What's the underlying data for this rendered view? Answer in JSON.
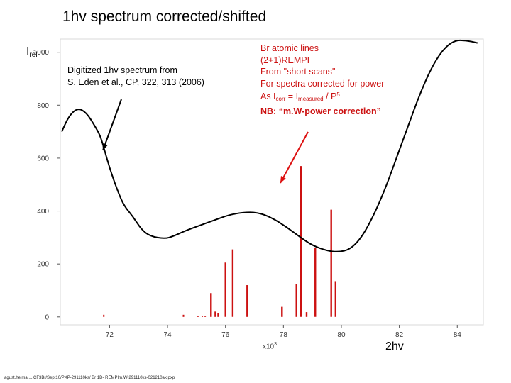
{
  "slide": {
    "title": "1hv spectrum  corrected/shifted",
    "footer": "agust,heima,....CF3Br/Sept10/PXP-291110ks/ Br 1D- REMPIm.W-291110ks-021210ak.pxp"
  },
  "annotations": {
    "y_label_main": "I",
    "y_label_sub": "rel",
    "digitized_line1": "Digitized 1hv spectrum from",
    "digitized_line2": "S. Eden et al., CP, 322, 313 (2006)",
    "br_line1": "Br atomic lines",
    "br_line2": "(2+1)REMPI",
    "br_line3": "From \"short scans\"",
    "br_line4": "For spectra corrected for power",
    "br_line5_as": "As I",
    "br_line5_corr": "corr",
    "br_line5_eq": " = I",
    "br_line5_meas": "measured",
    "br_line5_div": " / P",
    "br_line5_pow": "5",
    "br_line6": "NB: “m.W-power correction”",
    "x_label": "2hv",
    "x_exp_base": "x10",
    "x_exp_pow": "3"
  },
  "colors": {
    "spectrum_line": "#000000",
    "br_lines": "#cc1111",
    "arrow_black": "#000000",
    "arrow_red": "#dd1111"
  },
  "chart_data": {
    "type": "line",
    "xlim": [
      70.3,
      84.9
    ],
    "ylim": [
      -30,
      1050
    ],
    "x_scale_note": "x10^3",
    "xlabel": "2hv",
    "ylabel": "Irel",
    "xticks": [
      72,
      74,
      76,
      78,
      80,
      82,
      84
    ],
    "yticks": [
      0,
      200,
      400,
      600,
      800,
      1000
    ],
    "grid": false,
    "series": [
      {
        "kind": "line",
        "points": [
          [
            70.35,
            700
          ],
          [
            70.6,
            760
          ],
          [
            70.9,
            790
          ],
          [
            71.2,
            772
          ],
          [
            71.5,
            720
          ],
          [
            71.7,
            680
          ],
          [
            71.9,
            600
          ],
          [
            72.1,
            530
          ],
          [
            72.3,
            470
          ],
          [
            72.5,
            420
          ],
          [
            72.8,
            380
          ],
          [
            73.1,
            330
          ],
          [
            73.4,
            305
          ],
          [
            73.9,
            295
          ],
          [
            74.2,
            305
          ],
          [
            74.6,
            325
          ],
          [
            75.1,
            345
          ],
          [
            75.6,
            365
          ],
          [
            76.1,
            385
          ],
          [
            76.6,
            395
          ],
          [
            77.1,
            395
          ],
          [
            77.6,
            375
          ],
          [
            78.1,
            340
          ],
          [
            78.6,
            300
          ],
          [
            79.0,
            270
          ],
          [
            79.5,
            250
          ],
          [
            79.9,
            245
          ],
          [
            80.3,
            255
          ],
          [
            80.7,
            300
          ],
          [
            81.1,
            380
          ],
          [
            81.5,
            480
          ],
          [
            81.9,
            600
          ],
          [
            82.3,
            720
          ],
          [
            82.7,
            840
          ],
          [
            83.1,
            940
          ],
          [
            83.5,
            1010
          ],
          [
            83.9,
            1045
          ],
          [
            84.3,
            1045
          ],
          [
            84.7,
            1035
          ]
        ]
      },
      {
        "kind": "stick",
        "lines": [
          [
            71.8,
            8
          ],
          [
            74.55,
            8
          ],
          [
            75.05,
            3
          ],
          [
            75.2,
            3
          ],
          [
            75.3,
            3
          ],
          [
            75.5,
            90
          ],
          [
            75.65,
            20
          ],
          [
            75.75,
            15
          ],
          [
            76.0,
            205
          ],
          [
            76.25,
            255
          ],
          [
            76.75,
            120
          ],
          [
            77.95,
            38
          ],
          [
            78.45,
            125
          ],
          [
            78.6,
            570
          ],
          [
            78.8,
            18
          ],
          [
            79.1,
            260
          ],
          [
            79.65,
            405
          ],
          [
            79.8,
            135
          ]
        ]
      }
    ]
  }
}
